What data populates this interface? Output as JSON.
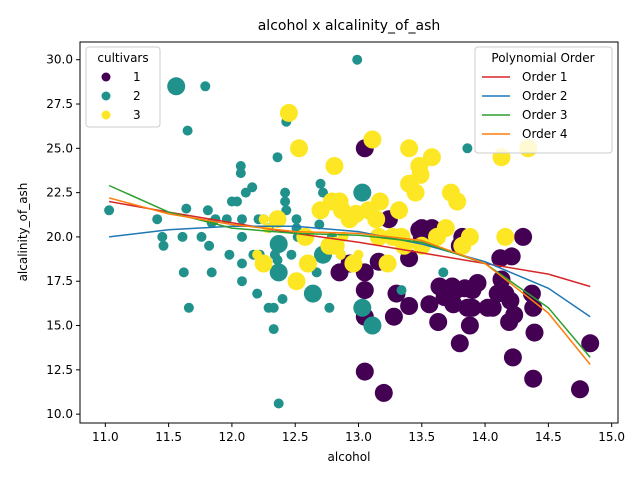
{
  "chart_data": {
    "type": "scatter",
    "title": "alcohol x alcalinity_of_ash",
    "xlabel": "alcohol",
    "ylabel": "alcalinity_of_ash",
    "xlim": [
      10.8,
      15.05
    ],
    "ylim": [
      9.5,
      31.0
    ],
    "xticks": [
      11.0,
      11.5,
      12.0,
      12.5,
      13.0,
      13.5,
      14.0,
      14.5,
      15.0
    ],
    "yticks": [
      10.0,
      12.5,
      15.0,
      17.5,
      20.0,
      22.5,
      25.0,
      27.5,
      30.0
    ],
    "grid": false,
    "colors": {
      "1": "#440154",
      "2": "#21918c",
      "3": "#fde725"
    },
    "size_encoding": {
      "small_radius": 5,
      "large_radius": 9
    },
    "cultivar_legend": {
      "title": "cultivars",
      "placement": "top-left",
      "entries": [
        {
          "label": "1",
          "color": "#440154"
        },
        {
          "label": "2",
          "color": "#21918c"
        },
        {
          "label": "3",
          "color": "#fde725"
        }
      ]
    },
    "order_legend": {
      "title": "Polynomial Order",
      "placement": "top-right",
      "entries": [
        {
          "label": "Order 1",
          "color": "#d62728"
        },
        {
          "label": "Order 2",
          "color": "#1f77b4"
        },
        {
          "label": "Order 3",
          "color": "#2ca02c"
        },
        {
          "label": "Order 4",
          "color": "#ff7f0e"
        }
      ]
    },
    "fit_lines": [
      {
        "name": "Order 1",
        "color": "#d62728",
        "x": [
          11.03,
          11.5,
          12.0,
          12.5,
          13.0,
          13.5,
          14.0,
          14.5,
          14.83
        ],
        "y": [
          22.0,
          21.4,
          20.8,
          20.2,
          19.7,
          19.1,
          18.5,
          17.9,
          17.2
        ]
      },
      {
        "name": "Order 2",
        "color": "#1f77b4",
        "x": [
          11.03,
          11.5,
          12.0,
          12.5,
          13.0,
          13.5,
          14.0,
          14.5,
          14.83
        ],
        "y": [
          20.0,
          20.4,
          20.6,
          20.6,
          20.3,
          19.6,
          18.6,
          17.1,
          15.5
        ]
      },
      {
        "name": "Order 3",
        "color": "#2ca02c",
        "x": [
          11.03,
          11.5,
          12.0,
          12.5,
          13.0,
          13.5,
          14.0,
          14.5,
          14.83
        ],
        "y": [
          22.9,
          21.4,
          20.5,
          20.2,
          20.1,
          19.7,
          18.5,
          16.0,
          13.2
        ]
      },
      {
        "name": "Order 4",
        "color": "#ff7f0e",
        "x": [
          11.03,
          11.5,
          12.0,
          12.5,
          13.0,
          13.5,
          14.0,
          14.5,
          14.83
        ],
        "y": [
          22.2,
          21.3,
          20.7,
          20.3,
          20.2,
          19.8,
          18.5,
          15.7,
          12.8
        ]
      }
    ],
    "series": [
      {
        "name": "1",
        "color": "#440154",
        "points": [
          [
            13.05,
            25.0,
            1
          ],
          [
            13.05,
            18.0,
            1
          ],
          [
            13.05,
            17.0,
            1
          ],
          [
            13.05,
            15.5,
            1
          ],
          [
            13.05,
            12.4,
            1
          ],
          [
            13.2,
            11.2,
            1
          ],
          [
            12.85,
            18.0,
            1
          ],
          [
            12.93,
            18.5,
            1
          ],
          [
            13.16,
            18.6,
            1
          ],
          [
            13.24,
            21.0,
            1
          ],
          [
            13.3,
            16.8,
            1
          ],
          [
            13.28,
            15.5,
            1
          ],
          [
            13.4,
            18.8,
            1
          ],
          [
            13.4,
            16.1,
            1
          ],
          [
            13.5,
            20.0,
            1
          ],
          [
            13.5,
            20.5,
            1
          ],
          [
            13.58,
            20.5,
            1
          ],
          [
            13.56,
            16.2,
            1
          ],
          [
            13.64,
            17.2,
            1
          ],
          [
            13.63,
            15.2,
            1
          ],
          [
            13.68,
            16.6,
            1
          ],
          [
            13.71,
            17.0,
            1
          ],
          [
            13.75,
            16.2,
            1
          ],
          [
            13.77,
            17.0,
            1
          ],
          [
            13.8,
            19.5,
            1
          ],
          [
            13.82,
            20.0,
            1
          ],
          [
            13.84,
            17.1,
            1
          ],
          [
            13.8,
            14.0,
            1
          ],
          [
            13.86,
            16.0,
            1
          ],
          [
            13.88,
            15.0,
            1
          ],
          [
            13.9,
            16.0,
            1
          ],
          [
            13.94,
            17.4,
            1
          ],
          [
            14.02,
            16.0,
            1
          ],
          [
            14.06,
            16.0,
            1
          ],
          [
            14.1,
            16.8,
            1
          ],
          [
            14.12,
            18.8,
            1
          ],
          [
            14.13,
            17.6,
            1
          ],
          [
            14.16,
            16.8,
            1
          ],
          [
            14.19,
            15.2,
            1
          ],
          [
            14.2,
            16.4,
            1
          ],
          [
            14.21,
            18.9,
            1
          ],
          [
            14.22,
            13.2,
            1
          ],
          [
            14.23,
            15.6,
            1
          ],
          [
            14.3,
            20.0,
            1
          ],
          [
            14.37,
            16.8,
            1
          ],
          [
            14.38,
            16.0,
            1
          ],
          [
            14.38,
            12.0,
            1
          ],
          [
            14.39,
            14.6,
            1
          ],
          [
            14.75,
            11.4,
            1
          ],
          [
            14.83,
            14.0,
            1
          ],
          [
            13.05,
            17.8,
            0
          ],
          [
            13.48,
            20.4,
            1
          ],
          [
            13.74,
            17.2,
            1
          ],
          [
            13.9,
            17.0,
            1
          ]
        ]
      },
      {
        "name": "2",
        "color": "#21918c",
        "points": [
          [
            11.03,
            21.5,
            0
          ],
          [
            11.41,
            21.0,
            0
          ],
          [
            11.45,
            20.0,
            0
          ],
          [
            11.46,
            19.5,
            0
          ],
          [
            11.56,
            28.5,
            1
          ],
          [
            11.61,
            20.0,
            0
          ],
          [
            11.62,
            18.0,
            0
          ],
          [
            11.64,
            21.6,
            0
          ],
          [
            11.65,
            26.0,
            0
          ],
          [
            11.66,
            16.0,
            0
          ],
          [
            11.76,
            20.0,
            0
          ],
          [
            11.79,
            28.5,
            0
          ],
          [
            11.81,
            21.5,
            0
          ],
          [
            11.82,
            19.5,
            0
          ],
          [
            11.84,
            18.0,
            0
          ],
          [
            11.87,
            21.0,
            0
          ],
          [
            11.96,
            21.0,
            0
          ],
          [
            11.98,
            19.0,
            0
          ],
          [
            12.0,
            22.0,
            0
          ],
          [
            12.04,
            22.0,
            0
          ],
          [
            12.07,
            24.0,
            0
          ],
          [
            12.07,
            23.6,
            0
          ],
          [
            12.08,
            21.0,
            0
          ],
          [
            12.08,
            20.0,
            0
          ],
          [
            12.08,
            18.5,
            0
          ],
          [
            12.08,
            17.5,
            0
          ],
          [
            12.16,
            22.8,
            0
          ],
          [
            12.17,
            19.0,
            0
          ],
          [
            12.2,
            16.8,
            0
          ],
          [
            12.21,
            21.0,
            0
          ],
          [
            12.22,
            19.0,
            0
          ],
          [
            12.25,
            18.5,
            0
          ],
          [
            12.29,
            16.0,
            0
          ],
          [
            12.29,
            20.5,
            0
          ],
          [
            12.33,
            16.0,
            0
          ],
          [
            12.33,
            14.8,
            0
          ],
          [
            12.34,
            19.0,
            0
          ],
          [
            12.36,
            24.5,
            0
          ],
          [
            12.36,
            18.7,
            0
          ],
          [
            12.37,
            18.0,
            1
          ],
          [
            12.37,
            19.6,
            1
          ],
          [
            12.37,
            10.6,
            0
          ],
          [
            12.37,
            21.0,
            0
          ],
          [
            12.42,
            22.5,
            0
          ],
          [
            12.42,
            22.0,
            0
          ],
          [
            12.43,
            21.5,
            0
          ],
          [
            12.43,
            26.5,
            0
          ],
          [
            12.47,
            19.0,
            0
          ],
          [
            12.51,
            21.0,
            0
          ],
          [
            12.51,
            20.5,
            0
          ],
          [
            12.52,
            20.0,
            0
          ],
          [
            12.6,
            20.0,
            0
          ],
          [
            12.64,
            16.8,
            1
          ],
          [
            12.67,
            18.0,
            0
          ],
          [
            12.69,
            20.7,
            0
          ],
          [
            12.7,
            23.0,
            0
          ],
          [
            12.72,
            22.5,
            0
          ],
          [
            12.72,
            19.0,
            1
          ],
          [
            12.77,
            16.0,
            0
          ],
          [
            12.79,
            20.0,
            0
          ],
          [
            12.84,
            19.5,
            0
          ],
          [
            12.86,
            19.0,
            0
          ],
          [
            12.88,
            20.0,
            0
          ],
          [
            12.99,
            30.0,
            0
          ],
          [
            13.03,
            22.5,
            1
          ],
          [
            13.03,
            16.0,
            1
          ],
          [
            13.11,
            15.0,
            1
          ],
          [
            13.34,
            17.0,
            0
          ],
          [
            13.67,
            18.0,
            0
          ],
          [
            13.86,
            25.0,
            0
          ],
          [
            11.84,
            20.8,
            0
          ],
          [
            12.11,
            22.5,
            0
          ],
          [
            12.4,
            16.5,
            0
          ],
          [
            12.25,
            21.0,
            0
          ]
        ]
      },
      {
        "name": "3",
        "color": "#fde725",
        "points": [
          [
            12.2,
            19.0,
            0
          ],
          [
            12.25,
            18.5,
            1
          ],
          [
            12.25,
            21.0,
            0
          ],
          [
            12.36,
            21.0,
            1
          ],
          [
            12.45,
            27.0,
            1
          ],
          [
            12.51,
            17.5,
            1
          ],
          [
            12.53,
            25.0,
            1
          ],
          [
            12.58,
            20.0,
            1
          ],
          [
            12.6,
            18.5,
            1
          ],
          [
            12.7,
            21.5,
            1
          ],
          [
            12.77,
            19.5,
            1
          ],
          [
            12.79,
            22.0,
            1
          ],
          [
            12.81,
            24.0,
            1
          ],
          [
            12.82,
            19.5,
            1
          ],
          [
            12.84,
            24.0,
            0
          ],
          [
            12.85,
            22.0,
            1
          ],
          [
            12.86,
            19.0,
            0
          ],
          [
            12.87,
            21.5,
            1
          ],
          [
            12.88,
            20.0,
            0
          ],
          [
            12.93,
            21.0,
            1
          ],
          [
            12.96,
            18.5,
            1
          ],
          [
            13.08,
            21.5,
            1
          ],
          [
            13.11,
            25.5,
            1
          ],
          [
            13.16,
            20.0,
            1
          ],
          [
            13.17,
            22.0,
            1
          ],
          [
            13.23,
            18.5,
            1
          ],
          [
            13.27,
            20.0,
            1
          ],
          [
            13.32,
            21.5,
            1
          ],
          [
            13.34,
            20.0,
            1
          ],
          [
            13.36,
            19.5,
            1
          ],
          [
            13.4,
            23.0,
            1
          ],
          [
            13.4,
            25.0,
            1
          ],
          [
            13.45,
            22.5,
            1
          ],
          [
            13.48,
            24.0,
            1
          ],
          [
            13.49,
            23.5,
            1
          ],
          [
            13.5,
            19.5,
            1
          ],
          [
            13.58,
            24.5,
            1
          ],
          [
            13.62,
            20.0,
            1
          ],
          [
            13.69,
            20.5,
            1
          ],
          [
            13.73,
            22.5,
            1
          ],
          [
            13.78,
            22.0,
            1
          ],
          [
            13.82,
            19.5,
            1
          ],
          [
            13.88,
            20.0,
            1
          ],
          [
            14.13,
            24.5,
            1
          ],
          [
            14.16,
            20.0,
            1
          ],
          [
            14.34,
            25.0,
            1
          ],
          [
            13.0,
            19.0,
            0
          ],
          [
            12.28,
            20.5,
            0
          ],
          [
            13.14,
            21.0,
            1
          ],
          [
            12.98,
            21.3,
            1
          ]
        ]
      }
    ]
  }
}
